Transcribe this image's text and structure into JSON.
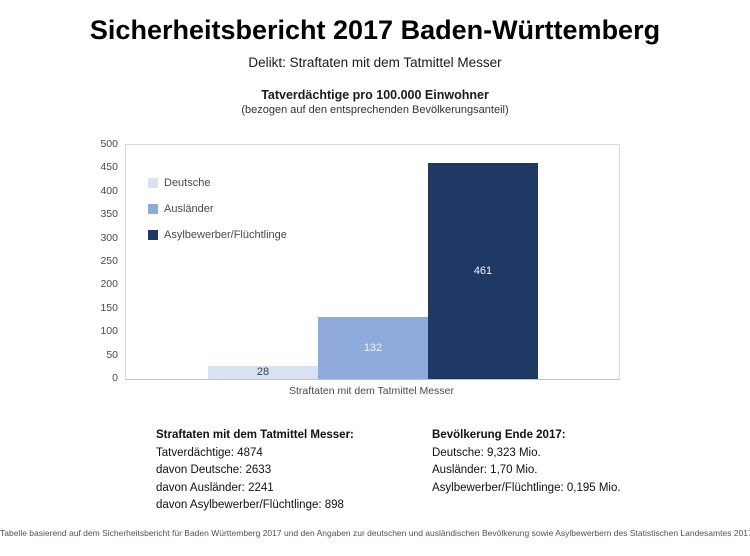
{
  "page": {
    "title": "Sicherheitsbericht 2017 Baden-Württemberg",
    "subtitle": "Delikt: Straftaten mit dem Tatmittel Messer",
    "footer": "Tabelle basierend auf dem Sicherheitsbericht für Baden Württemberg 2017 und den Angaben zur deutschen und ausländischen Bevölkerung sowie Asylbewerbern des Statistischen Landesamtes 2017"
  },
  "chart_data": {
    "type": "bar",
    "title": "Tatverdächtige pro 100.000 Einwohner",
    "subtitle": "(bezogen auf den entsprechenden Bevölkerungsanteil)",
    "categories": [
      "Straftaten mit dem Tatmittel Messer"
    ],
    "series": [
      {
        "name": "Deutsche",
        "values": [
          28
        ],
        "color": "#d9e2f3",
        "label_color": "#404040"
      },
      {
        "name": "Ausländer",
        "values": [
          132
        ],
        "color": "#8faadc",
        "label_color": "#f2f2f2"
      },
      {
        "name": "Asylbewerber/Flüchtlinge",
        "values": [
          461
        ],
        "color": "#1f3864",
        "label_color": "#f2f2f2"
      }
    ],
    "ylim": [
      0,
      500
    ],
    "yticks": [
      0,
      50,
      100,
      150,
      200,
      250,
      300,
      350,
      400,
      450,
      500
    ],
    "grid": false,
    "legend_position": "top-left-inside",
    "data_labels": true
  },
  "info_left": {
    "heading": "Straftaten mit dem Tatmittel Messer:",
    "lines": [
      "Tatverdächtige: 4874",
      "davon Deutsche: 2633",
      "davon Ausländer: 2241",
      "davon Asylbewerber/Flüchtlinge: 898"
    ]
  },
  "info_right": {
    "heading": "Bevölkerung Ende 2017:",
    "lines": [
      "Deutsche: 9,323 Mio.",
      "Ausländer: 1,70 Mio.",
      "Asylbewerber/Flüchtlinge: 0,195 Mio."
    ]
  }
}
